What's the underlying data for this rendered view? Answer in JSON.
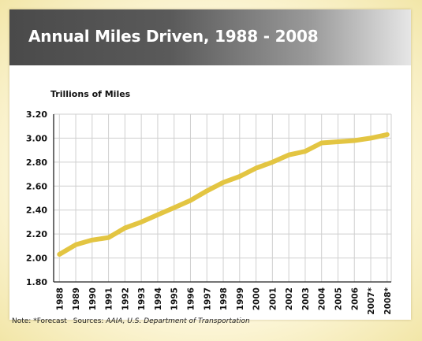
{
  "title": "Annual Miles Driven, 1988 - 2008",
  "note": {
    "note_text": "Note: *Forecast",
    "sources_label": "Sources:",
    "sources_italic": "AAIA, U.S. Department of Transportation"
  },
  "colors": {
    "line": "#e3c542",
    "grid": "#cfcfcf",
    "title_bar_dark": "#4a4a4a",
    "title_text": "#ffffff"
  },
  "chart_data": {
    "type": "line",
    "title": "Annual Miles Driven, 1988 - 2008",
    "ylabel": "Trillions of Miles",
    "xlabel": "",
    "ylim": [
      1.8,
      3.2
    ],
    "yticks": [
      "1.80",
      "2.00",
      "2.20",
      "2.40",
      "2.60",
      "2.80",
      "3.00",
      "3.20"
    ],
    "grid": true,
    "categories": [
      "1988",
      "1989",
      "1990",
      "1991",
      "1992",
      "1993",
      "1994",
      "1995",
      "1996",
      "1997",
      "1998",
      "1999",
      "2000",
      "2001",
      "2002",
      "2003",
      "2004",
      "2005",
      "2006",
      "2007*",
      "2008*"
    ],
    "values": [
      2.03,
      2.11,
      2.15,
      2.17,
      2.25,
      2.3,
      2.36,
      2.42,
      2.48,
      2.56,
      2.63,
      2.68,
      2.75,
      2.8,
      2.86,
      2.89,
      2.96,
      2.97,
      2.98,
      3.0,
      3.03
    ]
  }
}
